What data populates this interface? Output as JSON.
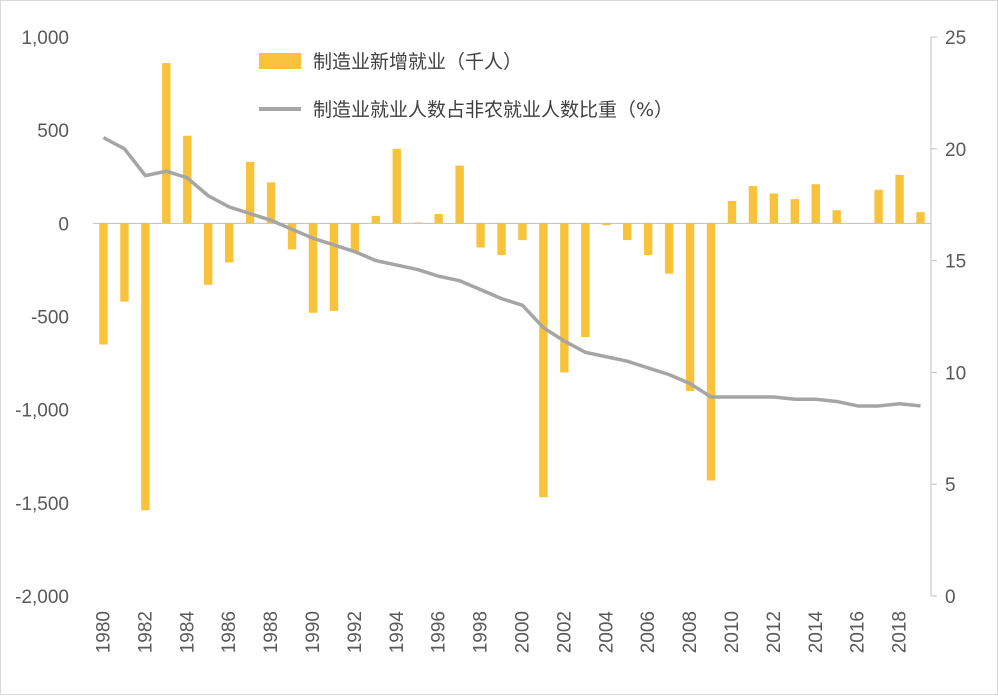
{
  "chart_data": {
    "type": "bar",
    "categories": [
      "1980",
      "1981",
      "1982",
      "1983",
      "1984",
      "1985",
      "1986",
      "1987",
      "1988",
      "1989",
      "1990",
      "1991",
      "1992",
      "1993",
      "1994",
      "1995",
      "1996",
      "1997",
      "1998",
      "1999",
      "2000",
      "2001",
      "2002",
      "2003",
      "2004",
      "2005",
      "2006",
      "2007",
      "2008",
      "2009",
      "2010",
      "2011",
      "2012",
      "2013",
      "2014",
      "2015",
      "2016",
      "2017",
      "2018",
      "2019"
    ],
    "x_tick_labels": [
      "1980",
      "1982",
      "1984",
      "1986",
      "1988",
      "1990",
      "1992",
      "1994",
      "1996",
      "1998",
      "2000",
      "2002",
      "2004",
      "2006",
      "2008",
      "2010",
      "2012",
      "2014",
      "2016",
      "2018"
    ],
    "series": [
      {
        "name": "制造业新增就业（千人）",
        "type": "bar",
        "axis": "left",
        "color": "#F8C23A",
        "values": [
          -650,
          -420,
          -1540,
          860,
          470,
          -330,
          -210,
          330,
          220,
          -140,
          -480,
          -470,
          -150,
          40,
          400,
          5,
          50,
          310,
          -130,
          -170,
          -90,
          -1470,
          -800,
          -610,
          -10,
          -90,
          -170,
          -270,
          -900,
          -1380,
          120,
          200,
          160,
          130,
          210,
          70,
          0,
          180,
          260,
          60
        ]
      },
      {
        "name": "制造业就业人数占非农就业人数比重（%）",
        "type": "line",
        "axis": "right",
        "color": "#A5A5A5",
        "values": [
          20.5,
          20.0,
          18.8,
          19.0,
          18.7,
          17.9,
          17.4,
          17.1,
          16.8,
          16.4,
          16.0,
          15.7,
          15.4,
          15.0,
          14.8,
          14.6,
          14.3,
          14.1,
          13.7,
          13.3,
          13.0,
          12.0,
          11.4,
          10.9,
          10.7,
          10.5,
          10.2,
          9.9,
          9.5,
          8.9,
          8.9,
          8.9,
          8.9,
          8.8,
          8.8,
          8.7,
          8.5,
          8.5,
          8.6,
          8.5
        ]
      }
    ],
    "y_left": {
      "ylim": [
        -2000,
        1000
      ],
      "ticks": [
        1000,
        500,
        0,
        -500,
        -1000,
        -1500,
        -2000
      ],
      "tick_labels": [
        "1,000",
        "500",
        "0",
        "-500",
        "-1,000",
        "-1,500",
        "-2,000"
      ]
    },
    "y_right": {
      "ylim": [
        0,
        25
      ],
      "ticks": [
        25,
        20,
        15,
        10,
        5,
        0
      ],
      "tick_labels": [
        "25",
        "20",
        "15",
        "10",
        "5",
        "0"
      ]
    },
    "legend_position": "top-center",
    "grid": false
  }
}
